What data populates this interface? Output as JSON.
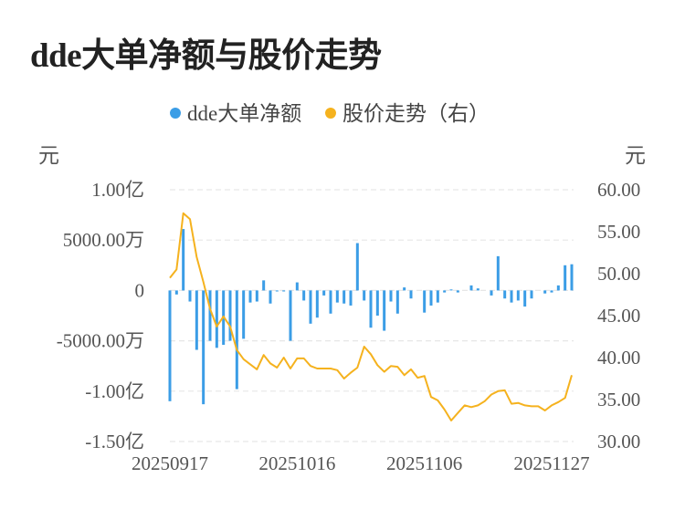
{
  "page": {
    "title": "dde大单净额与股价走势"
  },
  "chart_data": {
    "type": "bar+line",
    "title": "dde大单净额与股价走势",
    "legend": {
      "position": "top",
      "items": [
        "dde大单净额",
        "股价走势（右）"
      ]
    },
    "left_unit": "元",
    "right_unit": "元",
    "left_ticks": [
      "1.00亿",
      "5000.00万",
      "0",
      "-5000.00万",
      "-1.00亿",
      "-1.50亿"
    ],
    "left_range": [
      -1.5,
      1.0
    ],
    "right_ticks": [
      "60.00",
      "55.00",
      "50.00",
      "45.00",
      "40.00",
      "35.00",
      "30.00"
    ],
    "right_range": [
      30,
      60
    ],
    "x_ticks": [
      "20250917",
      "20251016",
      "20251106",
      "20251127"
    ],
    "x_tick_index": [
      0,
      19,
      38,
      57
    ],
    "grid": true,
    "colors": {
      "bar": "#3b9de6",
      "line": "#f5b21e",
      "grid": "#e6e6e6"
    },
    "series": [
      {
        "name": "dde大单净额",
        "type": "bar",
        "unit": "亿元",
        "values": [
          -1.1,
          -0.04,
          0.61,
          -0.11,
          -0.59,
          -1.13,
          -0.5,
          -0.57,
          -0.54,
          -0.5,
          -0.98,
          -0.48,
          -0.12,
          -0.11,
          0.1,
          -0.13,
          -0.01,
          -0.01,
          -0.5,
          0.08,
          -0.1,
          -0.33,
          -0.27,
          -0.05,
          -0.23,
          -0.12,
          -0.13,
          -0.15,
          0.47,
          -0.1,
          -0.37,
          -0.25,
          -0.4,
          -0.11,
          -0.23,
          0.03,
          -0.08,
          0.0,
          -0.22,
          -0.15,
          -0.12,
          -0.02,
          0.01,
          -0.02,
          0.0,
          0.05,
          0.02,
          0.0,
          -0.05,
          0.34,
          -0.08,
          -0.12,
          -0.1,
          -0.16,
          -0.08,
          0.0,
          -0.03,
          -0.02,
          0.05,
          0.25,
          0.26
        ]
      },
      {
        "name": "股价走势（右）",
        "type": "line",
        "unit": "元",
        "values": [
          49.5,
          50.5,
          57.2,
          56.5,
          52.0,
          49.0,
          45.8,
          43.7,
          44.9,
          43.7,
          40.9,
          39.8,
          39.2,
          38.6,
          40.3,
          39.3,
          38.8,
          40.0,
          38.7,
          39.9,
          39.9,
          39.0,
          38.7,
          38.7,
          38.7,
          38.5,
          37.5,
          38.2,
          38.8,
          41.3,
          40.4,
          39.1,
          38.3,
          39.0,
          38.9,
          37.9,
          38.6,
          37.6,
          37.8,
          35.3,
          34.9,
          33.8,
          32.5,
          33.4,
          34.3,
          34.1,
          34.3,
          34.8,
          35.6,
          36.0,
          36.1,
          34.5,
          34.6,
          34.3,
          34.2,
          34.2,
          33.7,
          34.3,
          34.7,
          35.2,
          37.9
        ]
      }
    ]
  }
}
